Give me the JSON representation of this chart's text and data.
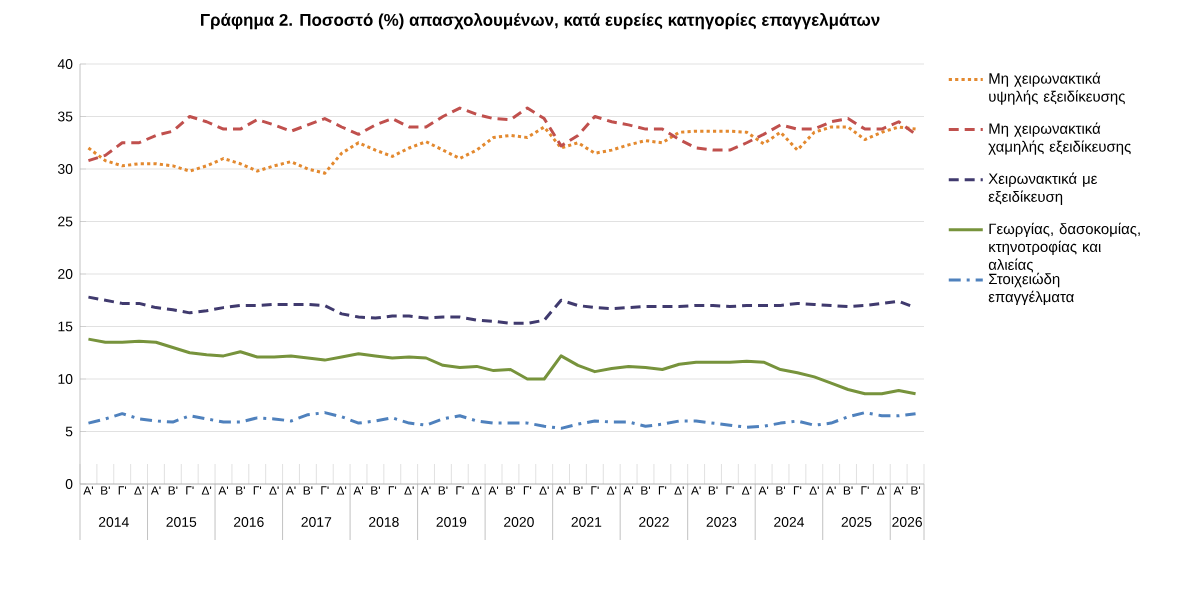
{
  "chart_data": {
    "type": "line",
    "title": "Γράφημα 2. Ποσοστό (%) απασχολουμένων, κατά ευρείες κατηγορίες επαγγελμάτων",
    "categories": [
      "Α'",
      "Β'",
      "Γ'",
      "Δ'",
      "Α'",
      "Β'",
      "Γ'",
      "Δ'",
      "Α'",
      "Β'",
      "Γ'",
      "Δ'",
      "Α'",
      "Β'",
      "Γ'",
      "Δ'",
      "Α'",
      "Β'",
      "Γ'",
      "Δ'",
      "Α'",
      "Β'",
      "Γ'",
      "Δ'",
      "Α'",
      "Β'",
      "Γ'",
      "Δ'",
      "Α'",
      "Β'",
      "Γ'",
      "Δ'",
      "Α'",
      "Β'",
      "Γ'",
      "Δ'",
      "Α'",
      "Β'",
      "Γ'",
      "Δ'",
      "Α'",
      "Β'",
      "Γ'",
      "Δ'",
      "Α'",
      "Β'",
      "Γ'",
      "Δ'",
      "Α'",
      "Β'"
    ],
    "annotations": [
      "2014",
      "2015",
      "2016",
      "2017",
      "2018",
      "2019",
      "2020",
      "2021",
      "2022",
      "2023",
      "2024",
      "2025",
      "2026"
    ],
    "ylim": [
      0,
      40
    ],
    "yticks": [
      0,
      5,
      10,
      15,
      20,
      25,
      30,
      35,
      40
    ],
    "grid": "y",
    "legend": "right",
    "series": [
      {
        "name": "Μη χειρωνακτικά υψηλής εξειδίκευσης",
        "color": "#e3892f",
        "line_style": "dotted",
        "values": [
          32.0,
          30.8,
          30.3,
          30.5,
          30.5,
          30.3,
          29.8,
          30.3,
          31.0,
          30.5,
          29.8,
          30.3,
          30.7,
          30.0,
          29.6,
          31.5,
          32.5,
          31.8,
          31.2,
          32.0,
          32.6,
          31.8,
          31.0,
          31.8,
          33.0,
          33.2,
          33.0,
          34.0,
          32.0,
          32.5,
          31.5,
          31.8,
          32.3,
          32.7,
          32.5,
          33.5,
          33.6,
          33.6,
          33.6,
          33.5,
          32.4,
          33.5,
          31.8,
          33.5,
          34.0,
          34.0,
          32.8,
          33.5,
          34.0,
          33.8
        ]
      },
      {
        "name": "Μη χειρωνακτικά χαμηλής εξειδίκευσης",
        "color": "#c0504d",
        "line_style": "dashed",
        "values": [
          30.8,
          31.3,
          32.5,
          32.5,
          33.2,
          33.6,
          35.0,
          34.5,
          33.8,
          33.8,
          34.7,
          34.2,
          33.6,
          34.2,
          34.8,
          34.0,
          33.3,
          34.2,
          34.8,
          34.0,
          34.0,
          35.0,
          35.8,
          35.2,
          34.8,
          34.7,
          35.8,
          34.8,
          32.2,
          33.2,
          35.0,
          34.5,
          34.2,
          33.8,
          33.8,
          32.8,
          32.0,
          31.8,
          31.8,
          32.5,
          33.3,
          34.2,
          33.8,
          33.8,
          34.5,
          34.8,
          33.8,
          33.8,
          34.5,
          33.3
        ]
      },
      {
        "name": "Χειρωνακτικά με εξειδίκευση",
        "color": "#403a6e",
        "line_style": "dashed",
        "values": [
          17.8,
          17.5,
          17.2,
          17.2,
          16.8,
          16.6,
          16.3,
          16.5,
          16.8,
          17.0,
          17.0,
          17.1,
          17.1,
          17.1,
          17.0,
          16.2,
          15.9,
          15.8,
          16.0,
          16.0,
          15.8,
          15.9,
          15.9,
          15.6,
          15.5,
          15.3,
          15.3,
          15.6,
          17.5,
          17.0,
          16.8,
          16.7,
          16.8,
          16.9,
          16.9,
          16.9,
          17.0,
          17.0,
          16.9,
          17.0,
          17.0,
          17.0,
          17.2,
          17.1,
          17.0,
          16.9,
          17.0,
          17.2,
          17.4,
          16.8
        ]
      },
      {
        "name": "Γεωργίας, δασοκομίας, κτηνοτροφίας και αλιείας",
        "color": "#77933c",
        "line_style": "solid",
        "values": [
          13.8,
          13.5,
          13.5,
          13.6,
          13.5,
          13.0,
          12.5,
          12.3,
          12.2,
          12.6,
          12.1,
          12.1,
          12.2,
          12.0,
          11.8,
          12.1,
          12.4,
          12.2,
          12.0,
          12.1,
          12.0,
          11.3,
          11.1,
          11.2,
          10.8,
          10.9,
          10.0,
          10.0,
          12.2,
          11.3,
          10.7,
          11.0,
          11.2,
          11.1,
          10.9,
          11.4,
          11.6,
          11.6,
          11.6,
          11.7,
          11.6,
          10.9,
          10.6,
          10.2,
          9.6,
          9.0,
          8.6,
          8.6,
          8.9,
          8.6
        ]
      },
      {
        "name": "Στοιχειώδη επαγγέλματα",
        "color": "#4f81bd",
        "line_style": "dashdot",
        "values": [
          5.8,
          6.2,
          6.7,
          6.2,
          6.0,
          5.9,
          6.5,
          6.2,
          5.9,
          5.9,
          6.3,
          6.2,
          6.0,
          6.6,
          6.8,
          6.4,
          5.8,
          6.0,
          6.3,
          5.8,
          5.6,
          6.2,
          6.5,
          6.0,
          5.8,
          5.8,
          5.8,
          5.5,
          5.3,
          5.7,
          6.0,
          5.9,
          5.9,
          5.5,
          5.7,
          6.0,
          6.0,
          5.8,
          5.6,
          5.4,
          5.5,
          5.8,
          6.0,
          5.6,
          5.8,
          6.4,
          6.8,
          6.5,
          6.5,
          6.7
        ]
      }
    ]
  }
}
